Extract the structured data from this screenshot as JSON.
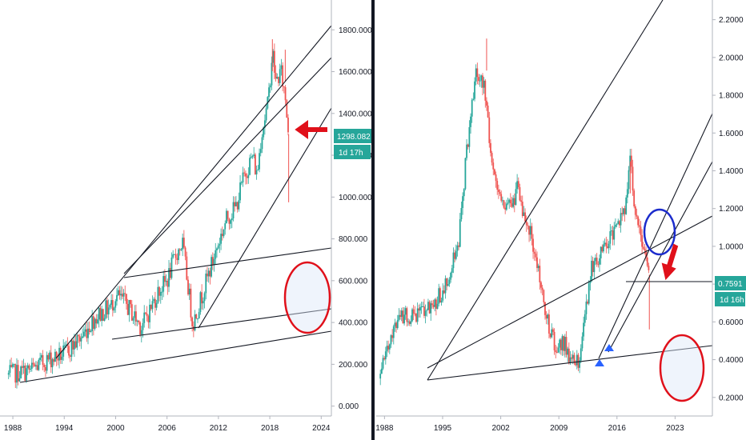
{
  "chart_data": [
    {
      "type": "line",
      "style": "candlestick",
      "x_ticks": [
        "1988",
        "1994",
        "2000",
        "2006",
        "2012",
        "2018",
        "2024"
      ],
      "y_ticks": [
        "0.000",
        "200.000",
        "400.000",
        "600.000",
        "800.000",
        "1000.000",
        "1200.000",
        "1400.000",
        "1600.000",
        "1800.000"
      ],
      "xlim": [
        1986.5,
        2025.0
      ],
      "ylim": [
        -55,
        1935
      ],
      "price_tag": {
        "value": "1298.082",
        "countdown": "1d 17h",
        "color": "#26a69a"
      },
      "series": [
        {
          "x": [
            1987.5,
            1990,
            1992,
            1994,
            1996,
            1997.5,
            1999.5,
            2000,
            2001,
            2002,
            2003,
            2004,
            2005,
            2006,
            2007,
            2007.8,
            2008.5,
            2009,
            2010,
            2011,
            2012,
            2013,
            2014,
            2015,
            2016,
            2016.5,
            2017,
            2017.8,
            2018.3,
            2018.7,
            2019.3,
            2019.8,
            2020.2
          ],
          "values": [
            150,
            170,
            220,
            250,
            330,
            420,
            480,
            530,
            500,
            440,
            380,
            460,
            550,
            600,
            720,
            780,
            560,
            390,
            520,
            650,
            780,
            900,
            950,
            1100,
            1200,
            1100,
            1300,
            1450,
            1700,
            1550,
            1600,
            1480,
            1300
          ],
          "wick_low": [
            [
              2020.2,
              975
            ]
          ],
          "wick_high": [
            [
              2018.3,
              1755
            ],
            [
              2019.8,
              1705
            ]
          ]
        }
      ],
      "annotations": [
        "trendlines",
        "red-circle",
        "red-arrow"
      ]
    },
    {
      "type": "line",
      "style": "candlestick",
      "x_ticks": [
        "1988",
        "1995",
        "2002",
        "2009",
        "2016",
        "2023"
      ],
      "y_ticks": [
        "0.2000",
        "0.4000",
        "0.6000",
        "0.8000",
        "1.0000",
        "1.2000",
        "1.4000",
        "1.6000",
        "1.8000",
        "2.0000",
        "2.2000"
      ],
      "xlim": [
        1987.0,
        2027.3
      ],
      "ylim": [
        0.0,
        2.3
      ],
      "price_tag": {
        "value": "0.7591",
        "countdown": "1d 16h",
        "color": "#26a69a"
      },
      "series": [
        {
          "x": [
            1987.5,
            1988.5,
            1990,
            1992,
            1994,
            1995.5,
            1997,
            1998,
            1999,
            2000,
            2001,
            2002,
            2003,
            2004,
            2005,
            2006,
            2007,
            2008,
            2008.8,
            2009.5,
            2010.5,
            2011.5,
            2012.2,
            2013,
            2014,
            2015,
            2016,
            2017.2,
            2017.6,
            2018.2,
            2019,
            2019.9
          ],
          "values": [
            0.3,
            0.5,
            0.62,
            0.65,
            0.7,
            0.8,
            1.05,
            1.55,
            1.9,
            1.85,
            1.4,
            1.25,
            1.2,
            1.3,
            1.15,
            1.0,
            0.75,
            0.55,
            0.45,
            0.5,
            0.4,
            0.38,
            0.65,
            0.9,
            0.95,
            1.05,
            1.1,
            1.25,
            1.45,
            1.15,
            1.05,
            0.85
          ],
          "wick_low": [
            [
              2019.9,
              0.56
            ]
          ],
          "wick_high": [
            [
              2000.3,
              2.1
            ],
            [
              2017.6,
              1.45
            ]
          ]
        }
      ],
      "annotations": [
        "trendlines",
        "blue-circle",
        "red-circle",
        "red-arrow",
        "blue-triangles"
      ]
    }
  ]
}
